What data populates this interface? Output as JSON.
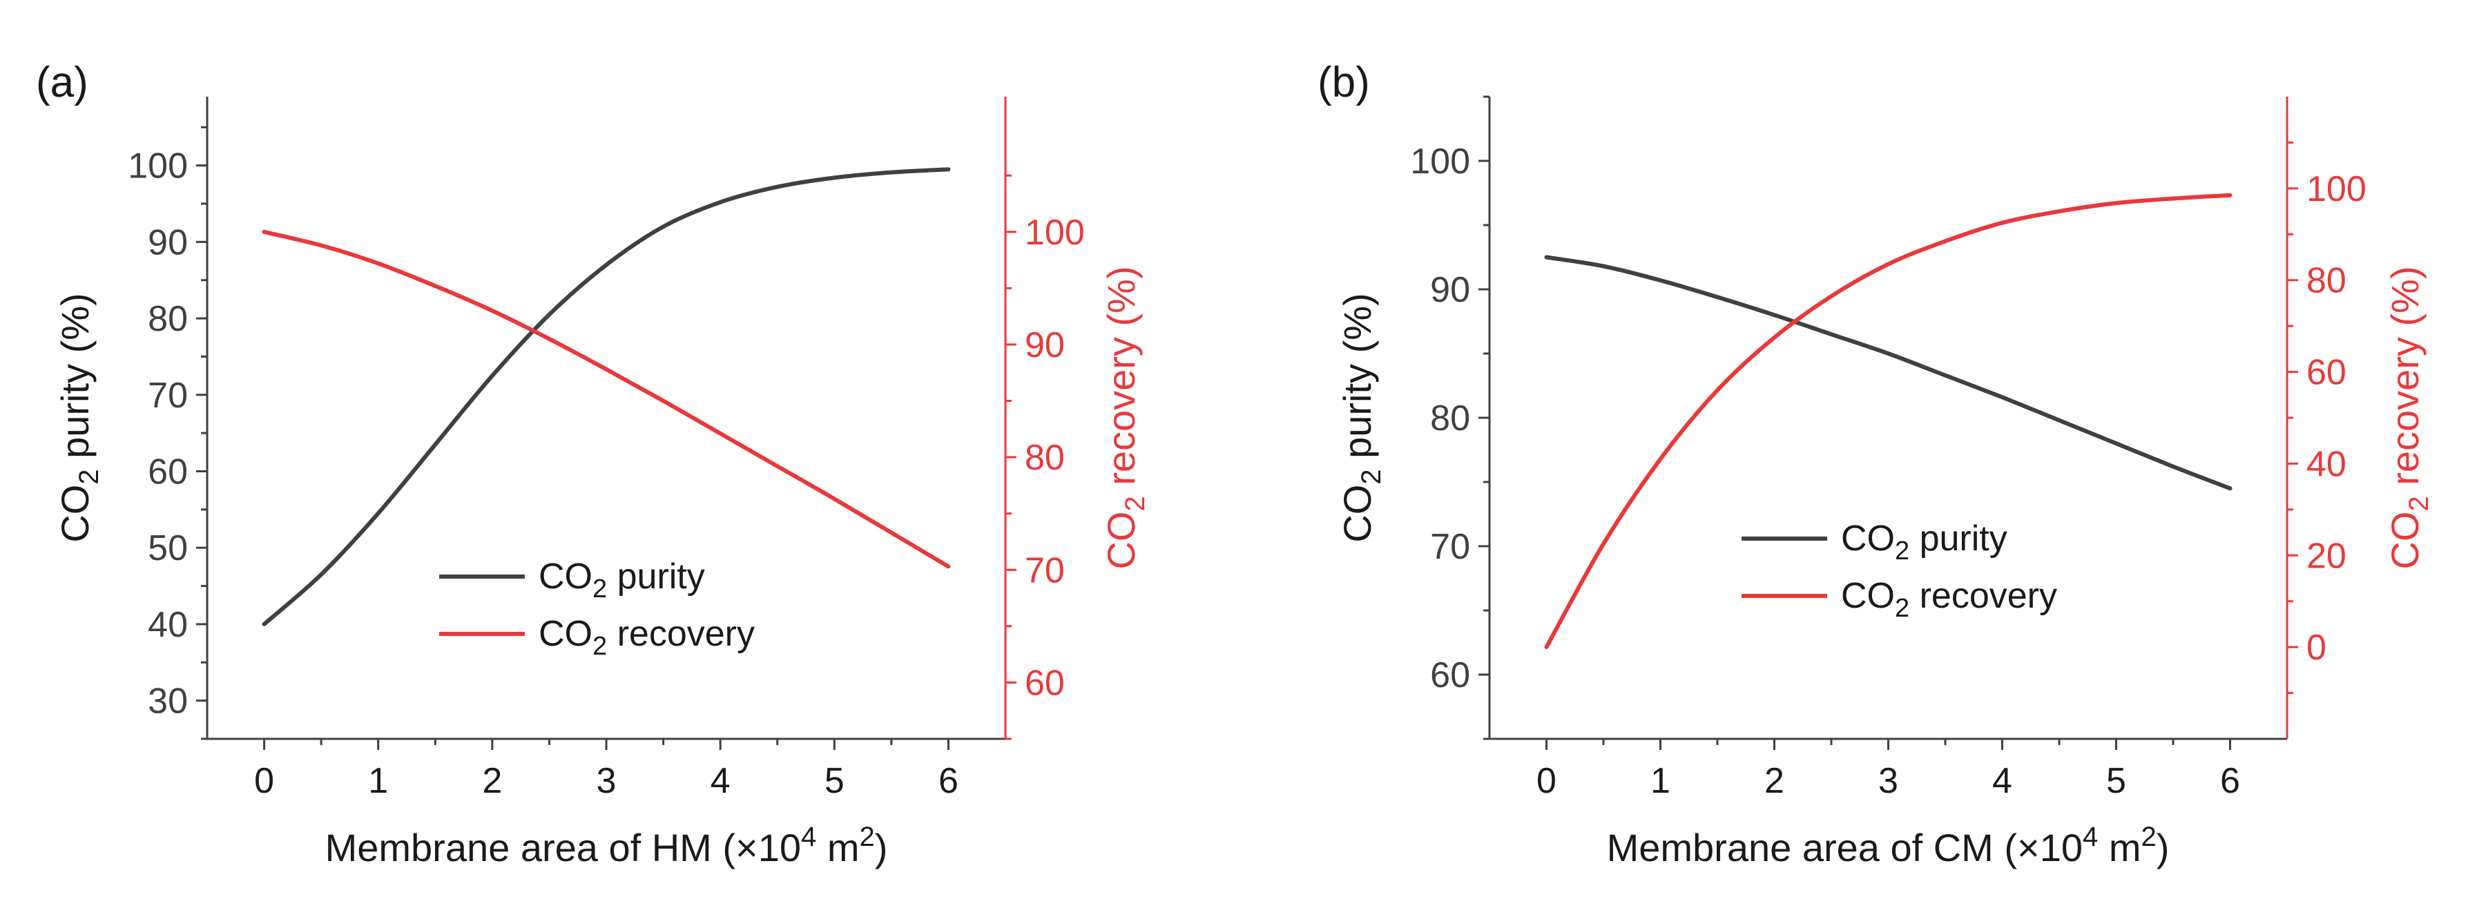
{
  "panels": [
    {
      "label": "(a)",
      "x_label": {
        "pre": "Membrane area of HM (×10",
        "exp1": "4",
        "mid": " m",
        "exp2": "2",
        "post": ")"
      },
      "left_label": {
        "pre": "CO",
        "sub": "2",
        "post": " purity (%)"
      },
      "right_label": {
        "pre": "CO",
        "sub": "2",
        "post": " recovery (%)"
      },
      "legend": [
        {
          "pre": "CO",
          "sub": "2",
          "post": " purity",
          "color": "#404040"
        },
        {
          "pre": "CO",
          "sub": "2",
          "post": " recovery",
          "color": "#e8393a"
        }
      ]
    },
    {
      "label": "(b)",
      "x_label": {
        "pre": "Membrane area of CM (×10",
        "exp1": "4",
        "mid": " m",
        "exp2": "2",
        "post": ")"
      },
      "left_label": {
        "pre": "CO",
        "sub": "2",
        "post": " purity (%)"
      },
      "right_label": {
        "pre": "CO",
        "sub": "2",
        "post": " recovery (%)"
      },
      "legend": [
        {
          "pre": "CO",
          "sub": "2",
          "post": " purity",
          "color": "#404040"
        },
        {
          "pre": "CO",
          "sub": "2",
          "post": " recovery",
          "color": "#e8393a"
        }
      ]
    }
  ],
  "colors": {
    "left_axis": "#404040",
    "right_axis": "#e8393a",
    "text": "#1a1a1a"
  },
  "chart_data": [
    {
      "type": "line",
      "panel": "(a)",
      "xlabel": "Membrane area of HM (×10^4 m^2)",
      "xlim": [
        -0.5,
        6.5
      ],
      "xticks": [
        0,
        1,
        2,
        3,
        4,
        5,
        6
      ],
      "y_left": {
        "label": "CO2 purity (%)",
        "lim": [
          25,
          109
        ],
        "ticks": [
          30,
          40,
          50,
          60,
          70,
          80,
          90,
          100
        ]
      },
      "y_right": {
        "label": "CO2 recovery (%)",
        "lim": [
          55,
          112
        ],
        "ticks": [
          60,
          70,
          80,
          90,
          100
        ]
      },
      "legend_position": "center",
      "series": [
        {
          "name": "CO2 purity",
          "axis": "left",
          "color": "#404040",
          "x": [
            0,
            0.5,
            1,
            1.5,
            2,
            2.5,
            3,
            3.5,
            4,
            4.5,
            5,
            5.5,
            6
          ],
          "y": [
            40,
            46.5,
            54.5,
            63.5,
            72.5,
            80.5,
            87,
            92,
            95.2,
            97.2,
            98.4,
            99.1,
            99.5
          ]
        },
        {
          "name": "CO2 recovery",
          "axis": "right",
          "color": "#e8393a",
          "x": [
            0,
            0.5,
            1,
            1.5,
            2,
            2.5,
            3,
            3.5,
            4,
            4.5,
            5,
            5.5,
            6
          ],
          "y": [
            100,
            98.8,
            97.2,
            95.2,
            93,
            90.5,
            87.8,
            85,
            82.1,
            79.2,
            76.3,
            73.3,
            70.3
          ]
        }
      ]
    },
    {
      "type": "line",
      "panel": "(b)",
      "xlabel": "Membrane area of CM (×10^4 m^2)",
      "xlim": [
        -0.5,
        6.5
      ],
      "xticks": [
        0,
        1,
        2,
        3,
        4,
        5,
        6
      ],
      "y_left": {
        "label": "CO2 purity (%)",
        "lim": [
          55,
          105
        ],
        "ticks": [
          60,
          70,
          80,
          90,
          100
        ]
      },
      "y_right": {
        "label": "CO2 recovery (%)",
        "lim": [
          -20,
          120
        ],
        "ticks": [
          0,
          20,
          40,
          60,
          80,
          100
        ]
      },
      "legend_position": "center",
      "series": [
        {
          "name": "CO2 purity",
          "axis": "left",
          "color": "#404040",
          "x": [
            0,
            0.5,
            1,
            1.5,
            2,
            2.5,
            3,
            3.5,
            4,
            4.5,
            5,
            5.5,
            6
          ],
          "y": [
            92.5,
            91.8,
            90.7,
            89.4,
            88,
            86.5,
            85,
            83.3,
            81.6,
            79.8,
            78,
            76.2,
            74.5
          ]
        },
        {
          "name": "CO2 recovery",
          "axis": "right",
          "color": "#e8393a",
          "x": [
            0,
            0.5,
            1,
            1.5,
            2,
            2.5,
            3,
            3.5,
            4,
            4.5,
            5,
            5.5,
            6
          ],
          "y": [
            0,
            22.5,
            41,
            56,
            67.5,
            76.5,
            83.5,
            88.5,
            92.5,
            95,
            96.8,
            97.8,
            98.5
          ]
        }
      ]
    }
  ]
}
